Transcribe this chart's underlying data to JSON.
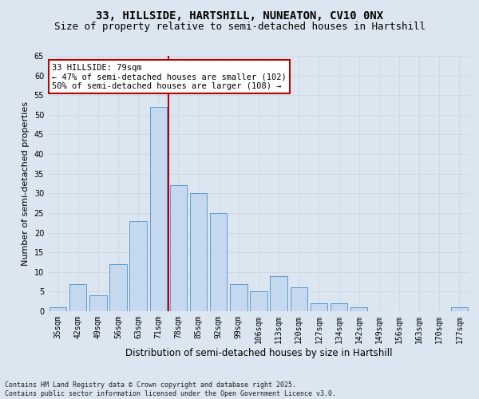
{
  "title1": "33, HILLSIDE, HARTSHILL, NUNEATON, CV10 0NX",
  "title2": "Size of property relative to semi-detached houses in Hartshill",
  "xlabel": "Distribution of semi-detached houses by size in Hartshill",
  "ylabel": "Number of semi-detached properties",
  "categories": [
    "35sqm",
    "42sqm",
    "49sqm",
    "56sqm",
    "63sqm",
    "71sqm",
    "78sqm",
    "85sqm",
    "92sqm",
    "99sqm",
    "106sqm",
    "113sqm",
    "120sqm",
    "127sqm",
    "134sqm",
    "142sqm",
    "149sqm",
    "156sqm",
    "163sqm",
    "170sqm",
    "177sqm"
  ],
  "values": [
    1,
    7,
    4,
    12,
    23,
    52,
    32,
    30,
    25,
    7,
    5,
    9,
    6,
    2,
    2,
    1,
    0,
    0,
    0,
    0,
    1
  ],
  "bar_color": "#c5d8ed",
  "bar_edge_color": "#5b9bd5",
  "grid_color": "#d0d8e4",
  "background_color": "#dce6f0",
  "vline_x_index": 6,
  "vline_color": "#c00000",
  "annotation_line1": "33 HILLSIDE: 79sqm",
  "annotation_line2": "← 47% of semi-detached houses are smaller (102)",
  "annotation_line3": "50% of semi-detached houses are larger (108) →",
  "annotation_box_color": "#ffffff",
  "annotation_box_edge": "#c00000",
  "ylim": [
    0,
    65
  ],
  "yticks": [
    0,
    5,
    10,
    15,
    20,
    25,
    30,
    35,
    40,
    45,
    50,
    55,
    60,
    65
  ],
  "footer": "Contains HM Land Registry data © Crown copyright and database right 2025.\nContains public sector information licensed under the Open Government Licence v3.0.",
  "title1_fontsize": 10,
  "title2_fontsize": 9,
  "xlabel_fontsize": 8.5,
  "ylabel_fontsize": 8,
  "tick_fontsize": 7,
  "annotation_fontsize": 7.5,
  "footer_fontsize": 6
}
